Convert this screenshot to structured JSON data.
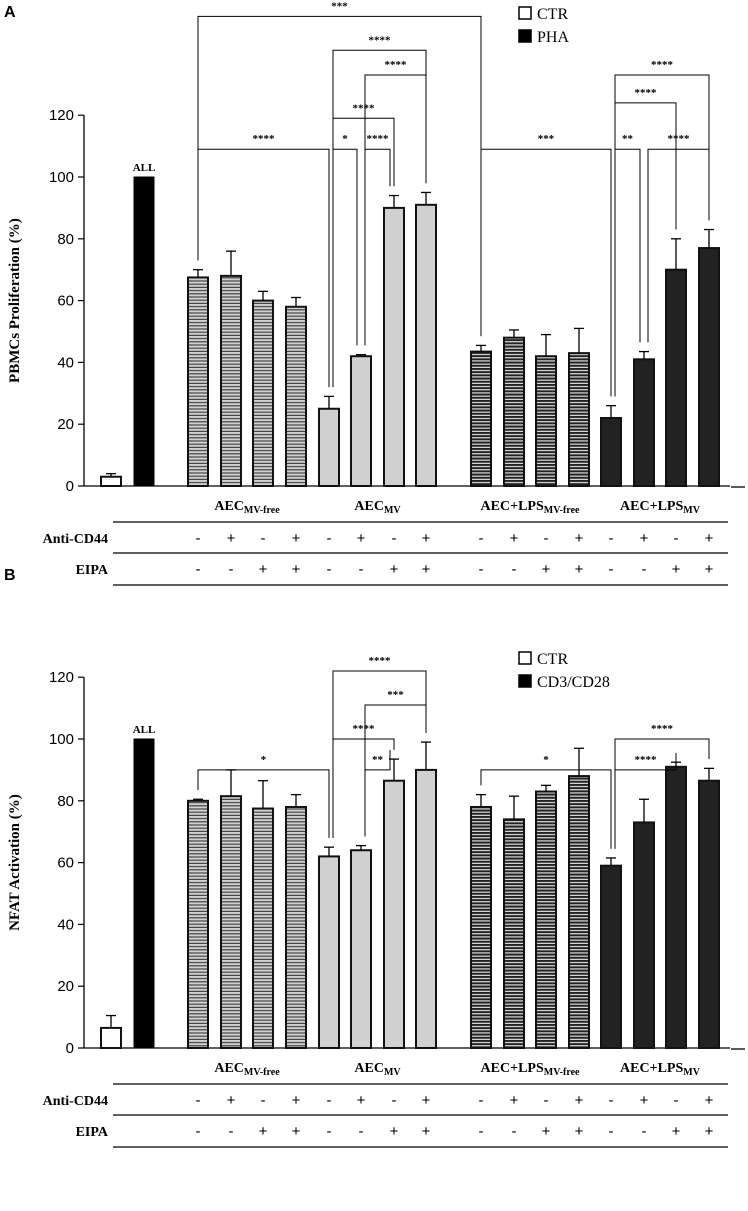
{
  "chart_data": [
    {
      "type": "bar",
      "panel_label": "A",
      "ylabel": "PBMCs Proliferation (%)",
      "ylim": [
        0,
        120
      ],
      "yticks": [
        0,
        20,
        40,
        60,
        80,
        100,
        120
      ],
      "legend": [
        {
          "label": "CTR",
          "color": "#ffffff"
        },
        {
          "label": "PHA",
          "color": "#000000"
        }
      ],
      "legend_position": "top-right",
      "control_labels": [
        "",
        "ALL"
      ],
      "groups": [
        {
          "name": "AEC",
          "sub": "MV-free"
        },
        {
          "name": "AEC",
          "sub": "MV"
        },
        {
          "name": "AEC+LPS",
          "sub": "MV-free"
        },
        {
          "name": "AEC+LPS",
          "sub": "MV"
        }
      ],
      "rows": [
        {
          "label": "Anti-CD44",
          "values": [
            "-",
            "+",
            "-",
            "+",
            "-",
            "+",
            "-",
            "+",
            "-",
            "+",
            "-",
            "+",
            "-",
            "+",
            "-",
            "+"
          ]
        },
        {
          "label": "EIPA",
          "values": [
            "-",
            "-",
            "+",
            "+",
            "-",
            "-",
            "+",
            "+",
            "-",
            "-",
            "+",
            "+",
            "-",
            "-",
            "+",
            "+"
          ]
        }
      ],
      "values": [
        3,
        100,
        67.5,
        68,
        60,
        58,
        25,
        42,
        90,
        91,
        43.5,
        48,
        42,
        43,
        22,
        41,
        70,
        77
      ],
      "errors": [
        1,
        0,
        2.5,
        8,
        3,
        3,
        4,
        0.5,
        4,
        4,
        2,
        2.5,
        7,
        8,
        4,
        2.5,
        10,
        6
      ],
      "brackets": [
        {
          "from": 2,
          "to": 10,
          "level": 152,
          "label": "***"
        },
        {
          "from": 6,
          "to": 9,
          "level": 141,
          "label": "****"
        },
        {
          "from": 7,
          "to": 9,
          "level": 133,
          "label": "****"
        },
        {
          "from": 6,
          "to": 8,
          "level": 119,
          "label": "****"
        },
        {
          "from": 2,
          "to": 6,
          "level": 109,
          "label": "****"
        },
        {
          "from": 6,
          "to": 7,
          "level": 109,
          "label": "*"
        },
        {
          "from": 7,
          "to": 8,
          "level": 109,
          "label": "****"
        },
        {
          "from": 10,
          "to": 14,
          "level": 109,
          "label": "***"
        },
        {
          "from": 14,
          "to": 15,
          "level": 109,
          "label": "**"
        },
        {
          "from": 15,
          "to": 17,
          "level": 109,
          "label": "****"
        },
        {
          "from": 14,
          "to": 17,
          "level": 133,
          "label": "****"
        },
        {
          "from": 14,
          "to": 16,
          "level": 124,
          "label": "****"
        }
      ]
    },
    {
      "type": "bar",
      "panel_label": "B",
      "ylabel": "NFAT Activation (%)",
      "ylim": [
        0,
        120
      ],
      "yticks": [
        0,
        20,
        40,
        60,
        80,
        100,
        120
      ],
      "legend": [
        {
          "label": "CTR",
          "color": "#ffffff"
        },
        {
          "label": "CD3/CD28",
          "color": "#000000"
        }
      ],
      "legend_position": "top-right",
      "control_labels": [
        "",
        "ALL"
      ],
      "groups": [
        {
          "name": "AEC",
          "sub": "MV-free"
        },
        {
          "name": "AEC",
          "sub": "MV"
        },
        {
          "name": "AEC+LPS",
          "sub": "MV-free"
        },
        {
          "name": "AEC+LPS",
          "sub": "MV"
        }
      ],
      "rows": [
        {
          "label": "Anti-CD44",
          "values": [
            "-",
            "+",
            "-",
            "+",
            "-",
            "+",
            "-",
            "+",
            "-",
            "+",
            "-",
            "+",
            "-",
            "+",
            "-",
            "+"
          ]
        },
        {
          "label": "EIPA",
          "values": [
            "-",
            "-",
            "+",
            "+",
            "-",
            "-",
            "+",
            "+",
            "-",
            "-",
            "+",
            "+",
            "-",
            "-",
            "+",
            "+"
          ]
        }
      ],
      "values": [
        6.5,
        100,
        80,
        81.5,
        77.5,
        78,
        62,
        64,
        86.5,
        90,
        78,
        74,
        83,
        88,
        59,
        73,
        91,
        86.5
      ],
      "errors": [
        4,
        0,
        0.5,
        8.5,
        9,
        4,
        3,
        1.5,
        7,
        9,
        4,
        7.5,
        2,
        9,
        2.5,
        7.5,
        1.5,
        4
      ],
      "brackets": [
        {
          "from": 6,
          "to": 9,
          "level": 122,
          "label": "****"
        },
        {
          "from": 7,
          "to": 9,
          "level": 111,
          "label": "***"
        },
        {
          "from": 6,
          "to": 8,
          "level": 100,
          "label": "****"
        },
        {
          "from": 7,
          "to": 8,
          "level": 90,
          "label": "**"
        },
        {
          "from": 2,
          "to": 6,
          "level": 90,
          "label": "*"
        },
        {
          "from": 10,
          "to": 14,
          "level": 90,
          "label": "*"
        },
        {
          "from": 14,
          "to": 17,
          "level": 100,
          "label": "****"
        },
        {
          "from": 14,
          "to": 16,
          "level": 90,
          "label": "****"
        }
      ]
    }
  ]
}
